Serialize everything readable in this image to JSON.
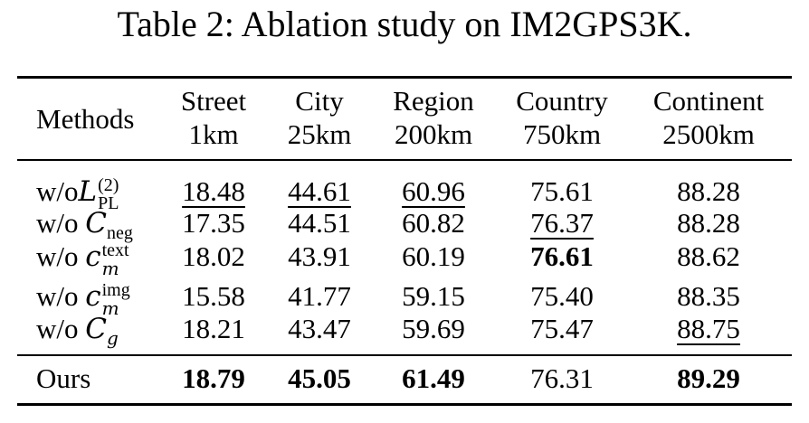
{
  "caption": "Table 2: Ablation study on IM2GPS3K.",
  "header": {
    "methods": "Methods",
    "columns": [
      {
        "name": "Street",
        "threshold": "1km"
      },
      {
        "name": "City",
        "threshold": "25km"
      },
      {
        "name": "Region",
        "threshold": "200km"
      },
      {
        "name": "Country",
        "threshold": "750km"
      },
      {
        "name": "Continent",
        "threshold": "2500km"
      }
    ]
  },
  "rows": [
    {
      "prefix": "w/o",
      "symbol": "L",
      "sub": "PL",
      "sup": "(2)",
      "values": [
        "18.48",
        "44.61",
        "60.96",
        "75.61",
        "88.28"
      ]
    },
    {
      "prefix": "w/o ",
      "symbol": "C",
      "sub": "neg",
      "sup": "",
      "values": [
        "17.35",
        "44.51",
        "60.82",
        "76.37",
        "88.28"
      ]
    },
    {
      "prefix": "w/o ",
      "symbol": "c",
      "sub": "m",
      "sup": "text",
      "values": [
        "18.02",
        "43.91",
        "60.19",
        "76.61",
        "88.62"
      ]
    },
    {
      "prefix": "w/o ",
      "symbol": "c",
      "sub": "m",
      "sup": "img",
      "values": [
        "15.58",
        "41.77",
        "59.15",
        "75.40",
        "88.35"
      ]
    },
    {
      "prefix": "w/o ",
      "symbol": "C",
      "sub": "g",
      "sup": "",
      "values": [
        "18.21",
        "43.47",
        "59.69",
        "75.47",
        "88.75"
      ]
    }
  ],
  "final_row": {
    "label": "Ours",
    "values": [
      "18.79",
      "45.05",
      "61.49",
      "76.31",
      "89.29"
    ]
  }
}
